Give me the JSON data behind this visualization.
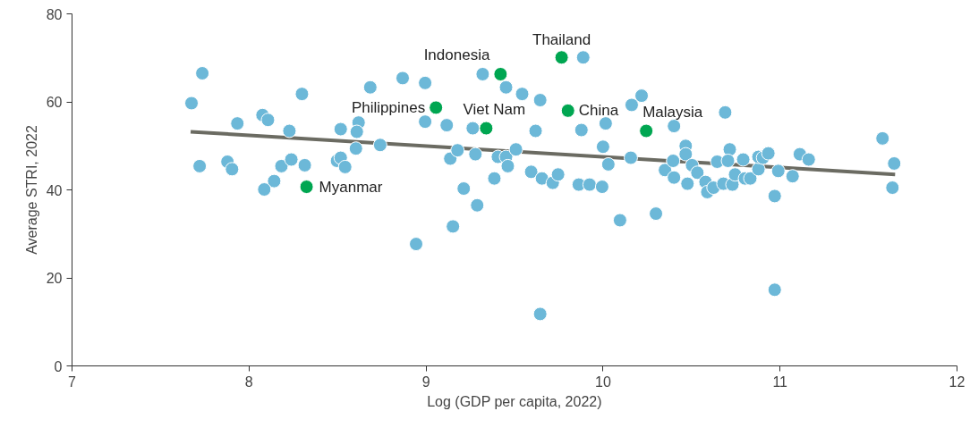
{
  "chart_data": {
    "type": "scatter",
    "xlabel": "Log (GDP per capita, 2022)",
    "ylabel": "Average STRI, 2022",
    "xlim": [
      7,
      12
    ],
    "xticks": [
      7,
      8,
      9,
      10,
      11,
      12
    ],
    "ylim": [
      0,
      80
    ],
    "yticks": [
      0,
      20,
      40,
      60,
      80
    ],
    "grid": false,
    "marker": "circle",
    "series": [
      {
        "color": "#6cb8d8",
        "x": [
          7.736,
          7.675,
          7.934,
          8.076,
          8.107,
          8.299,
          8.228,
          8.518,
          8.619,
          8.609,
          8.604,
          8.685,
          8.868,
          8.995,
          8.995,
          9.117,
          8.741,
          7.721,
          7.878,
          7.904,
          8.183,
          8.239,
          8.315,
          8.142,
          8.086,
          8.497,
          8.518,
          8.543,
          9.137,
          9.152,
          8.944,
          9.32,
          9.452,
          9.543,
          9.645,
          9.888,
          9.264,
          9.619,
          9.878,
          10.015,
          10.162,
          10.218,
          10.401,
          9.178,
          9.279,
          9.406,
          9.452,
          9.508,
          9.462,
          9.386,
          9.213,
          9.289,
          9.594,
          9.655,
          9.716,
          9.746,
          9.863,
          9.924,
          9.995,
          10.0,
          10.03,
          10.096,
          10.299,
          10.157,
          10.35,
          10.396,
          10.401,
          10.467,
          10.467,
          10.503,
          10.533,
          10.477,
          10.579,
          10.589,
          10.624,
          9.645,
          10.69,
          10.716,
          10.645,
          10.706,
          10.792,
          10.68,
          10.731,
          10.746,
          10.802,
          10.832,
          10.878,
          10.878,
          10.904,
          10.934,
          10.99,
          10.97,
          11.071,
          11.112,
          11.162,
          10.97,
          11.579,
          11.645,
          11.635
        ],
        "values": [
          66.5,
          59.7,
          55.1,
          57.0,
          55.9,
          61.8,
          53.4,
          53.8,
          55.3,
          53.2,
          49.4,
          63.3,
          65.4,
          64.3,
          55.5,
          54.7,
          50.2,
          45.4,
          46.4,
          44.7,
          45.4,
          46.9,
          45.6,
          42.0,
          40.1,
          46.6,
          47.3,
          45.2,
          47.1,
          31.7,
          27.7,
          66.3,
          63.3,
          61.8,
          60.4,
          70.1,
          54.0,
          53.4,
          53.6,
          55.1,
          59.3,
          61.4,
          54.5,
          49.0,
          48.1,
          47.5,
          47.5,
          49.2,
          45.4,
          42.6,
          40.3,
          36.5,
          44.1,
          42.6,
          41.6,
          43.5,
          41.2,
          41.2,
          40.7,
          49.8,
          45.8,
          33.1,
          34.6,
          47.3,
          44.5,
          46.6,
          42.8,
          50.0,
          48.1,
          45.6,
          43.9,
          41.4,
          41.8,
          39.5,
          40.5,
          11.8,
          57.6,
          49.2,
          46.4,
          46.6,
          46.9,
          41.4,
          41.2,
          43.5,
          42.6,
          42.6,
          44.7,
          47.5,
          47.3,
          48.3,
          44.3,
          38.6,
          43.1,
          48.1,
          46.9,
          17.3,
          51.7,
          46.0,
          40.5
        ]
      },
      {
        "color": "#00a651",
        "x": [
          9.056,
          8.325,
          9.766,
          9.421,
          9.34,
          9.802,
          10.244
        ],
        "values": [
          58.7,
          40.7,
          70.1,
          66.3,
          54.0,
          58.0,
          53.4
        ]
      },
      {
        "type": "line",
        "color": "#6b6b62",
        "marker": "none",
        "x": [
          7.67,
          11.65
        ],
        "values": [
          53.2,
          43.5
        ]
      }
    ],
    "annotations": [
      {
        "text": "Philippines",
        "x": 9.056,
        "y": 58.7
      },
      {
        "text": "Myanmar",
        "x": 8.325,
        "y": 40.7
      },
      {
        "text": "Thailand",
        "x": 9.766,
        "y": 70.1
      },
      {
        "text": "Indonesia",
        "x": 9.421,
        "y": 66.3
      },
      {
        "text": "Viet Nam",
        "x": 9.34,
        "y": 54.0
      },
      {
        "text": "China",
        "x": 9.802,
        "y": 58.0
      },
      {
        "text": "Malaysia",
        "x": 10.244,
        "y": 53.4
      }
    ]
  }
}
